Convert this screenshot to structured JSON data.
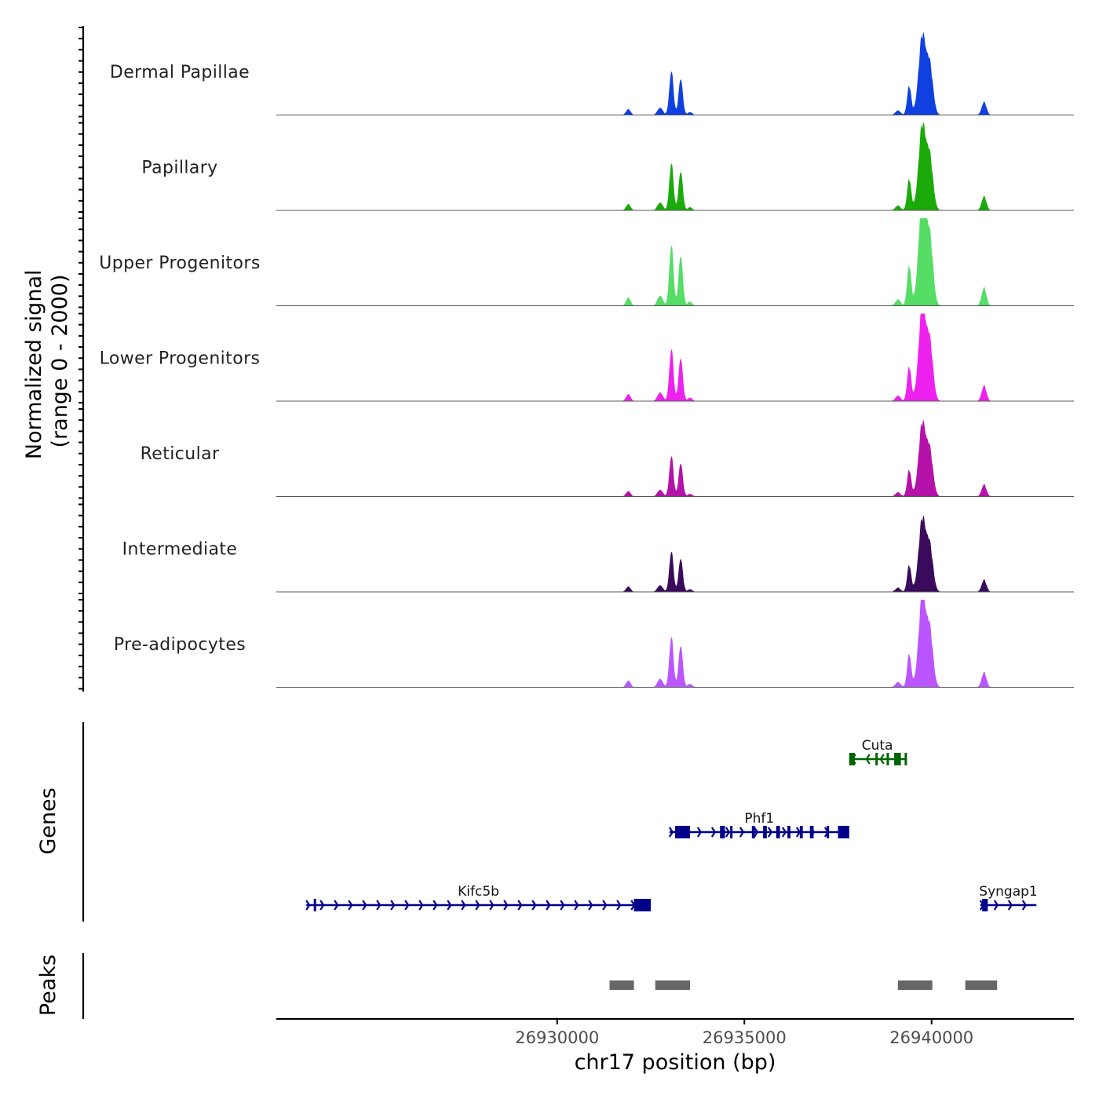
{
  "chart_data": {
    "type": "area",
    "title": "",
    "ylabel_line1": "Normalized signal",
    "ylabel_line2": "(range 0 - 2000)",
    "genes_label": "Genes",
    "peaks_label": "Peaks",
    "xlabel": "chr17 position (bp)",
    "xlim": [
      26922500,
      26943800
    ],
    "x_ticks": [
      26930000,
      26935000,
      26940000
    ],
    "x_tick_labels": [
      "26930000",
      "26935000",
      "26940000"
    ],
    "signal_range": [
      0,
      2000
    ],
    "peak_shape": [
      {
        "pos": 26931900,
        "width": 60,
        "rel": 0.08
      },
      {
        "pos": 26932750,
        "width": 70,
        "rel": 0.1
      },
      {
        "pos": 26933050,
        "width": 55,
        "rel": 0.6
      },
      {
        "pos": 26933300,
        "width": 55,
        "rel": 0.5
      },
      {
        "pos": 26933550,
        "width": 60,
        "rel": 0.04
      },
      {
        "pos": 26939100,
        "width": 70,
        "rel": 0.06
      },
      {
        "pos": 26939400,
        "width": 55,
        "rel": 0.38
      },
      {
        "pos": 26939750,
        "width": 100,
        "rel": 1.0
      },
      {
        "pos": 26939950,
        "width": 90,
        "rel": 0.6
      },
      {
        "pos": 26941400,
        "width": 65,
        "rel": 0.17
      }
    ],
    "tracks": [
      {
        "name": "Dermal Papillae",
        "color": "#1040E0",
        "max_signal": 1300
      },
      {
        "name": "Papillary",
        "color": "#1AAA0A",
        "max_signal": 1400
      },
      {
        "name": "Upper Progenitors",
        "color": "#55DD66",
        "max_signal": 1800
      },
      {
        "name": "Lower Progenitors",
        "color": "#EE22EE",
        "max_signal": 1550
      },
      {
        "name": "Reticular",
        "color": "#B412A8",
        "max_signal": 1200
      },
      {
        "name": "Intermediate",
        "color": "#3A0A5C",
        "max_signal": 1200
      },
      {
        "name": "Pre-adipocytes",
        "color": "#BB55FF",
        "max_signal": 1500
      }
    ],
    "genes": [
      {
        "name": "Cuta",
        "strand": "-",
        "start": 26937800,
        "end": 26939300,
        "row": 0,
        "color": "#006400",
        "exons": [
          [
            26937800,
            26937950
          ],
          [
            26938500,
            26938560
          ],
          [
            26938800,
            26938850
          ],
          [
            26939000,
            26939180
          ],
          [
            26939280,
            26939300
          ]
        ]
      },
      {
        "name": "Phf1",
        "strand": "+",
        "start": 26933000,
        "end": 26937800,
        "row": 1,
        "color": "#00008B",
        "exons": [
          [
            26933150,
            26933550
          ],
          [
            26934350,
            26934480
          ],
          [
            26934620,
            26934680
          ],
          [
            26935200,
            26935280
          ],
          [
            26935500,
            26935600
          ],
          [
            26935850,
            26935950
          ],
          [
            26936150,
            26936230
          ],
          [
            26936480,
            26936560
          ],
          [
            26936750,
            26936850
          ],
          [
            26937200,
            26937230
          ],
          [
            26937500,
            26937800
          ]
        ]
      },
      {
        "name": "Kifc5b",
        "strand": "+",
        "start": 26923300,
        "end": 26932500,
        "row": 2,
        "color": "#00008B",
        "exons": [
          [
            26923500,
            26923540
          ],
          [
            26932050,
            26932500
          ]
        ]
      },
      {
        "name": "Syngap1",
        "strand": "+",
        "start": 26941300,
        "end": 26942800,
        "row": 2,
        "color": "#00008B",
        "exons": [
          [
            26941350,
            26941500
          ]
        ]
      }
    ],
    "peaks": [
      {
        "start": 26931400,
        "end": 26932050
      },
      {
        "start": 26932620,
        "end": 26933550
      },
      {
        "start": 26939100,
        "end": 26940020
      },
      {
        "start": 26940900,
        "end": 26941750
      }
    ],
    "peak_color": "#666666"
  }
}
